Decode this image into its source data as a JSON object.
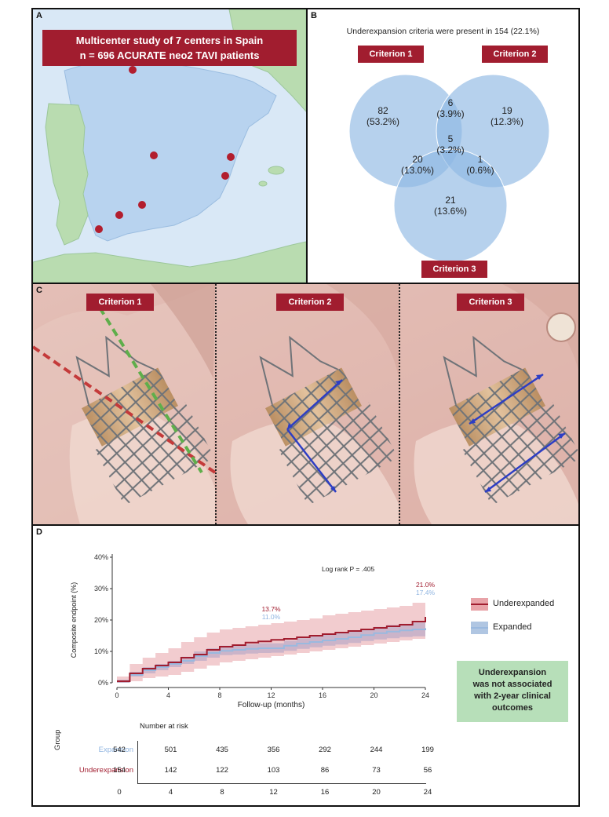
{
  "panel_a": {
    "label": "A",
    "title_line1": "Multicenter study of 7 centers in Spain",
    "title_line2": "n = 696 ACURATE neo2 TAVI patients"
  },
  "panel_b": {
    "label": "B",
    "title": "Underexpansion criteria were present in 154 (22.1%)",
    "criterion1": "Criterion 1",
    "criterion2": "Criterion 2",
    "criterion3": "Criterion 3",
    "regions": {
      "only1": {
        "n": "82",
        "pct": "(53.2%)"
      },
      "c12": {
        "n": "6",
        "pct": "(3.9%)"
      },
      "only2": {
        "n": "19",
        "pct": "(12.3%)"
      },
      "c123": {
        "n": "5",
        "pct": "(3.2%)"
      },
      "c13": {
        "n": "20",
        "pct": "(13.0%)"
      },
      "c23": {
        "n": "1",
        "pct": "(0.6%)"
      },
      "only3": {
        "n": "21",
        "pct": "(13.6%)"
      }
    }
  },
  "panel_c": {
    "label": "C",
    "criterion1": "Criterion 1",
    "criterion2": "Criterion 2",
    "criterion3": "Criterion 3"
  },
  "panel_d": {
    "label": "D",
    "loglog": "Log rank P = .405",
    "callout_line1": "Underexpansion",
    "callout_line2": "was not associated",
    "callout_line3": "with 2-year clinical",
    "callout_line4": "outcomes",
    "risk_title": "Number at risk",
    "group_label": "Group",
    "risk_groups": [
      {
        "name": "Expansion",
        "color": "#8fb4e0",
        "values": [
          "542",
          "501",
          "435",
          "356",
          "292",
          "244",
          "199"
        ]
      },
      {
        "name": "Underexpansion",
        "color": "#a11d2f",
        "values": [
          "154",
          "142",
          "122",
          "103",
          "86",
          "73",
          "56"
        ]
      }
    ],
    "risk_ticks": [
      "0",
      "4",
      "8",
      "12",
      "16",
      "20",
      "24"
    ]
  },
  "chart_data": {
    "type": "line",
    "xlabel": "Follow-up (months)",
    "ylabel": "Composite endpoint (%)",
    "xlim": [
      0,
      24
    ],
    "ylim": [
      0,
      40
    ],
    "xticks": [
      "0",
      "4",
      "8",
      "12",
      "16",
      "20",
      "24"
    ],
    "yticks": [
      "0%",
      "10%",
      "20%",
      "30%",
      "40%"
    ],
    "legend": "right",
    "series": [
      {
        "name": "Underexpanded",
        "color": "#a11d2f",
        "band_color": "#e8a3a8",
        "x": [
          0,
          1,
          2,
          3,
          4,
          5,
          6,
          7,
          8,
          9,
          10,
          11,
          12,
          13,
          14,
          15,
          16,
          17,
          18,
          19,
          20,
          21,
          22,
          23,
          24
        ],
        "y": [
          0.5,
          3,
          4.5,
          5.5,
          6.5,
          8,
          9,
          10.5,
          11.5,
          12,
          12.8,
          13.2,
          13.7,
          14,
          14.5,
          15,
          15.5,
          16,
          16.5,
          17,
          17.5,
          18,
          18.5,
          19.5,
          21
        ],
        "lower": [
          0,
          0.5,
          1.5,
          2,
          2.5,
          3.5,
          4.5,
          5.5,
          6.5,
          7,
          7.5,
          8,
          8.5,
          9,
          9.5,
          10,
          10.5,
          11,
          11.5,
          12,
          12.5,
          13,
          13.5,
          14,
          14.5
        ],
        "upper": [
          2,
          6,
          8,
          9.5,
          11,
          13,
          14.5,
          16,
          17,
          17.5,
          18,
          18.5,
          19,
          19.5,
          20,
          20.5,
          21.5,
          22,
          22.5,
          23,
          23.5,
          24,
          24.5,
          25.5,
          27
        ]
      },
      {
        "name": "Expanded",
        "color": "#9ab9df",
        "band_color": "#b0a4c4",
        "x": [
          0,
          1,
          2,
          3,
          4,
          5,
          6,
          7,
          8,
          9,
          10,
          11,
          12,
          13,
          14,
          15,
          16,
          17,
          18,
          19,
          20,
          21,
          22,
          23,
          24
        ],
        "y": [
          0.5,
          2.5,
          4,
          5,
          6,
          7,
          8.5,
          9.5,
          10.2,
          10.5,
          10.8,
          11,
          11.0,
          11.8,
          12.5,
          13,
          13.5,
          14,
          14.5,
          15.2,
          15.8,
          16.3,
          16.7,
          17,
          17.4
        ],
        "lower": [
          0,
          2,
          3,
          4,
          5,
          6,
          7,
          8,
          8.8,
          9,
          9.3,
          9.5,
          9.6,
          10.2,
          10.8,
          11.3,
          11.8,
          12.2,
          12.7,
          13.3,
          13.8,
          14.2,
          14.6,
          14.8,
          15
        ],
        "upper": [
          1,
          3.5,
          5,
          6,
          7,
          8.3,
          10,
          11,
          11.8,
          12,
          12.3,
          12.6,
          12.6,
          13.4,
          14.2,
          14.8,
          15.3,
          15.8,
          16.4,
          17.1,
          17.8,
          18.4,
          18.8,
          19.2,
          19.8
        ]
      }
    ],
    "annotations": [
      {
        "x": 12,
        "text": "13.7%",
        "color": "#a11d2f"
      },
      {
        "x": 12,
        "text": "11.0%",
        "color": "#8fb4e0"
      },
      {
        "x": 24,
        "text": "21.0%",
        "color": "#a11d2f"
      },
      {
        "x": 24,
        "text": "17.4%",
        "color": "#8fb4e0"
      }
    ]
  }
}
